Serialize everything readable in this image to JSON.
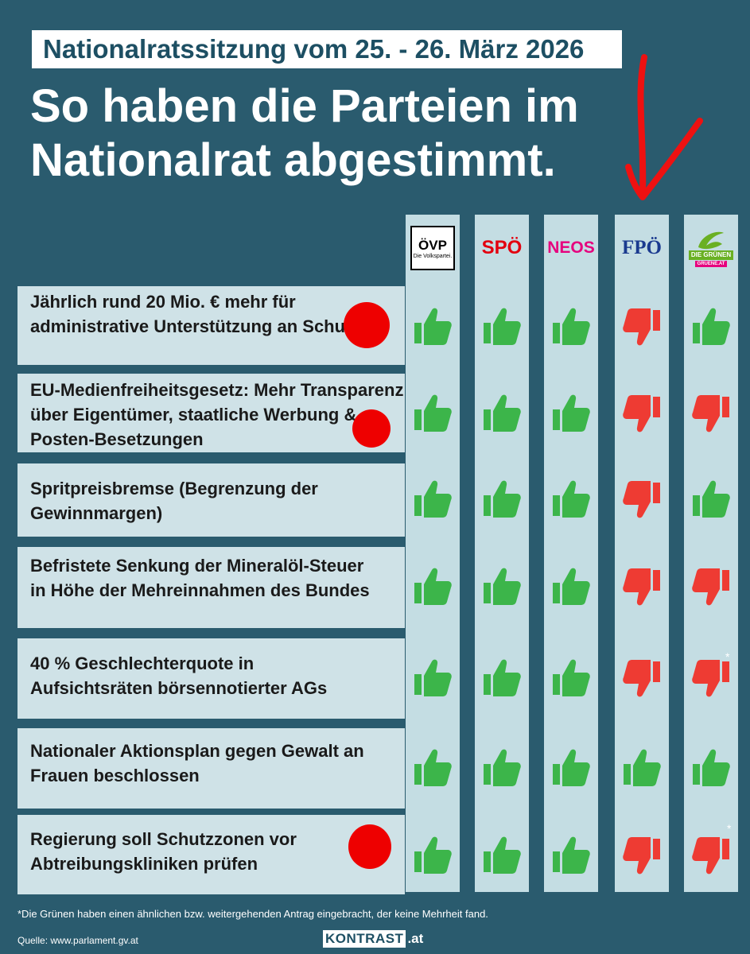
{
  "header": {
    "date_banner": "Nationalratssitzung vom 25. - 26. März 2026",
    "title_line1": "So haben die Parteien im",
    "title_line2": "Nationalrat abgestimmt."
  },
  "parties": [
    {
      "name": "ÖVP",
      "tagline": "Die Volkspartei.",
      "color": "#000000"
    },
    {
      "name": "SPÖ",
      "color": "#e3000f"
    },
    {
      "name": "NEOS",
      "color": "#e6007e"
    },
    {
      "name": "FPÖ",
      "color": "#1a3a8f"
    },
    {
      "name": "DIE GRÜNEN",
      "tagline": "GRUENE.AT",
      "color": "#6ab023"
    }
  ],
  "motions": [
    {
      "text": "Jährlich rund 20 Mio. € mehr für administrative Unterstützung an Schulen",
      "votes": [
        "up",
        "up",
        "up",
        "down",
        "up"
      ]
    },
    {
      "text": "EU-Medienfreiheitsgesetz: Mehr Transparenz über Eigentümer, staatliche Werbung & Posten-Besetzungen",
      "votes": [
        "up",
        "up",
        "up",
        "down",
        "down"
      ]
    },
    {
      "text": "Spritpreisbremse (Begrenzung der Gewinnmargen)",
      "votes": [
        "up",
        "up",
        "up",
        "down",
        "up"
      ]
    },
    {
      "text": "Befristete Senkung der Mineralöl-Steuer in Höhe der Mehreinnahmen des Bundes",
      "votes": [
        "up",
        "up",
        "up",
        "down",
        "down"
      ]
    },
    {
      "text": "40 % Geschlechterquote in Aufsichtsräten börsennotierter AGs",
      "votes": [
        "up",
        "up",
        "up",
        "down",
        "down"
      ],
      "asterisk": "*"
    },
    {
      "text": "Nationaler Aktionsplan gegen Gewalt an Frauen beschlossen",
      "votes": [
        "up",
        "up",
        "up",
        "up",
        "up"
      ]
    },
    {
      "text": "Regierung soll Schutzzonen vor Abtreibungskliniken prüfen",
      "votes": [
        "up",
        "up",
        "up",
        "down",
        "down"
      ],
      "asterisk": "*"
    }
  ],
  "footnote": "*Die Grünen haben einen ähnlichen bzw. weitergehenden Antrag eingebracht, der keine Mehrheit fand.",
  "source": "Quelle: www.parlament.gv.at",
  "brand": {
    "name": "KONTRAST",
    "suffix": ".at"
  },
  "colors": {
    "background": "#2a5b6e",
    "thumb_up": "#3cb54a",
    "thumb_down": "#ee3b33",
    "annotation": "#ee0000"
  },
  "icons": {
    "vote_yes": "thumbs-up-icon",
    "vote_no": "thumbs-down-icon"
  }
}
